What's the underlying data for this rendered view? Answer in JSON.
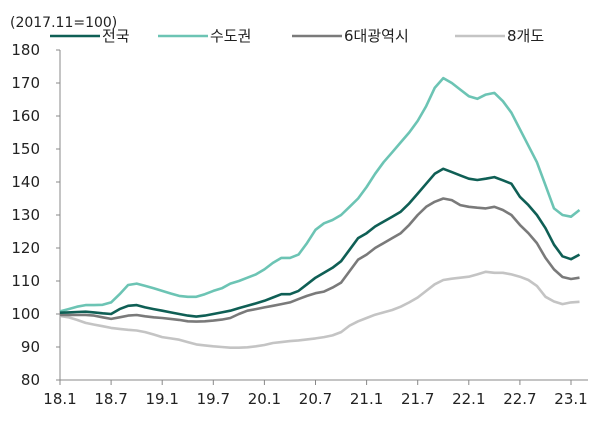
{
  "chart_data": {
    "type": "line",
    "title": "",
    "unit_note": "(2017.11=100)",
    "xlabel": "",
    "ylabel": "",
    "ylim": [
      80,
      180
    ],
    "yticks": [
      80,
      90,
      100,
      110,
      120,
      130,
      140,
      150,
      160,
      170,
      180
    ],
    "xtick_labels": [
      "18.1",
      "18.7",
      "19.1",
      "19.7",
      "20.1",
      "20.7",
      "21.1",
      "21.7",
      "22.1",
      "22.7",
      "23.1"
    ],
    "grid": false,
    "legend_position": "top",
    "x": [
      "18.1",
      "18.2",
      "18.3",
      "18.4",
      "18.5",
      "18.6",
      "18.7",
      "18.8",
      "18.9",
      "18.10",
      "18.11",
      "18.12",
      "19.1",
      "19.2",
      "19.3",
      "19.4",
      "19.5",
      "19.6",
      "19.7",
      "19.8",
      "19.9",
      "19.10",
      "19.11",
      "19.12",
      "20.1",
      "20.2",
      "20.3",
      "20.4",
      "20.5",
      "20.6",
      "20.7",
      "20.8",
      "20.9",
      "20.10",
      "20.11",
      "20.12",
      "21.1",
      "21.2",
      "21.3",
      "21.4",
      "21.5",
      "21.6",
      "21.7",
      "21.8",
      "21.9",
      "21.10",
      "21.11",
      "21.12",
      "22.1",
      "22.2",
      "22.3",
      "22.4",
      "22.5",
      "22.6",
      "22.7",
      "22.8",
      "22.9",
      "22.10",
      "22.11",
      "22.12",
      "23.1",
      "23.2"
    ],
    "series": [
      {
        "name": "전국",
        "color": "#0f5f55",
        "values": [
          100.4,
          100.5,
          100.6,
          100.7,
          100.5,
          100.2,
          100,
          101.5,
          102.5,
          102.7,
          102,
          101.5,
          101,
          100.5,
          100,
          99.5,
          99.2,
          99.5,
          100,
          100.5,
          101,
          101.8,
          102.5,
          103.2,
          104,
          105,
          106,
          106,
          107,
          109,
          111,
          112.5,
          114,
          116,
          119.5,
          123,
          124.5,
          126.5,
          128,
          129.5,
          131,
          133.5,
          136.5,
          139.5,
          142.5,
          144,
          143,
          142,
          141,
          140.6,
          141,
          141.5,
          140.5,
          139.5,
          135.5,
          133,
          130,
          126,
          121,
          117.5,
          116.6,
          118
        ]
      },
      {
        "name": "수도권",
        "color": "#6cc4b4",
        "values": [
          100.8,
          101.5,
          102.2,
          102.7,
          102.7,
          102.8,
          103.5,
          106,
          108.8,
          109.2,
          108.5,
          107.8,
          107,
          106.2,
          105.5,
          105.2,
          105.2,
          106,
          107,
          107.8,
          109.2,
          110,
          111,
          112,
          113.5,
          115.5,
          117,
          117,
          118,
          121.5,
          125.5,
          127.5,
          128.5,
          130,
          132.5,
          135,
          138.5,
          142.5,
          146,
          149,
          152,
          155,
          158.5,
          163,
          168.5,
          171.5,
          170,
          168,
          166,
          165.2,
          166.5,
          167,
          164.5,
          161,
          156,
          151,
          146,
          139,
          132,
          130,
          129.5,
          131.5
        ]
      },
      {
        "name": "6대광역시",
        "color": "#7a7a7a",
        "values": [
          99.7,
          99.7,
          99.7,
          99.7,
          99.5,
          99,
          98.5,
          99,
          99.5,
          99.7,
          99.3,
          99,
          98.8,
          98.5,
          98.2,
          97.8,
          97.7,
          97.8,
          98,
          98.3,
          98.8,
          100,
          101,
          101.5,
          102,
          102.5,
          103,
          103.5,
          104.5,
          105.5,
          106.3,
          106.8,
          108,
          109.5,
          113,
          116.5,
          118,
          120,
          121.5,
          123,
          124.5,
          127,
          130,
          132.5,
          134,
          135,
          134.5,
          133,
          132.5,
          132.2,
          132,
          132.5,
          131.5,
          130,
          127,
          124.5,
          121.5,
          117,
          113.5,
          111.2,
          110.6,
          111
        ]
      },
      {
        "name": "8개도",
        "color": "#c4c4c4",
        "values": [
          99.4,
          99,
          98.2,
          97.3,
          96.8,
          96.3,
          95.8,
          95.5,
          95.2,
          95,
          94.5,
          93.8,
          93,
          92.6,
          92.2,
          91.5,
          90.8,
          90.5,
          90.2,
          90,
          89.8,
          89.8,
          89.9,
          90.2,
          90.6,
          91.2,
          91.5,
          91.8,
          92,
          92.3,
          92.6,
          93,
          93.5,
          94.5,
          96.5,
          97.8,
          98.8,
          99.8,
          100.5,
          101.2,
          102.2,
          103.5,
          105,
          107,
          109,
          110.3,
          110.7,
          111,
          111.3,
          112,
          112.8,
          112.5,
          112.5,
          112,
          111.3,
          110.3,
          108.5,
          105.2,
          103.8,
          103,
          103.5,
          103.7
        ]
      }
    ]
  }
}
